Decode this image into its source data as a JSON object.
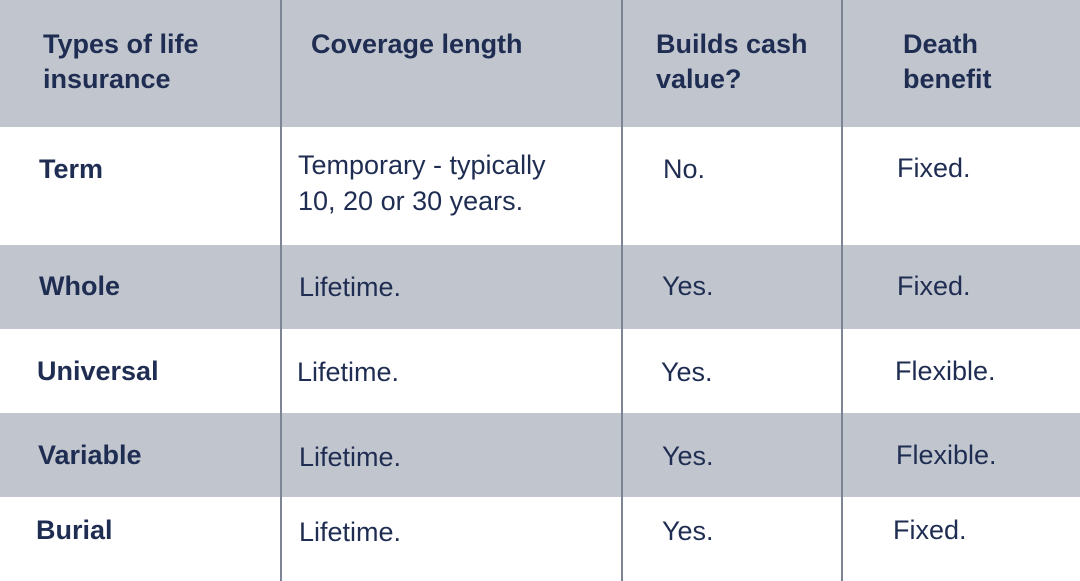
{
  "header": {
    "types": "Types of life\ninsurance",
    "coverage": "Coverage length",
    "cash": "Builds cash\nvalue?",
    "death": "Death\nbenefit"
  },
  "rows": [
    {
      "type": "Term",
      "coverage": "Temporary - typically\n10, 20 or 30 years.",
      "cash": "No.",
      "death": "Fixed."
    },
    {
      "type": "Whole",
      "coverage": "Lifetime.",
      "cash": "Yes.",
      "death": "Fixed."
    },
    {
      "type": "Universal",
      "coverage": "Lifetime.",
      "cash": "Yes.",
      "death": "Flexible."
    },
    {
      "type": "Variable",
      "coverage": "Lifetime.",
      "cash": "Yes.",
      "death": "Flexible."
    },
    {
      "type": "Burial",
      "coverage": "Lifetime.",
      "cash": "Yes.",
      "death": "Fixed."
    }
  ],
  "colors": {
    "header_bg": "#c1c6ce",
    "text": "#1f2d52",
    "divider": "#7d8594"
  }
}
